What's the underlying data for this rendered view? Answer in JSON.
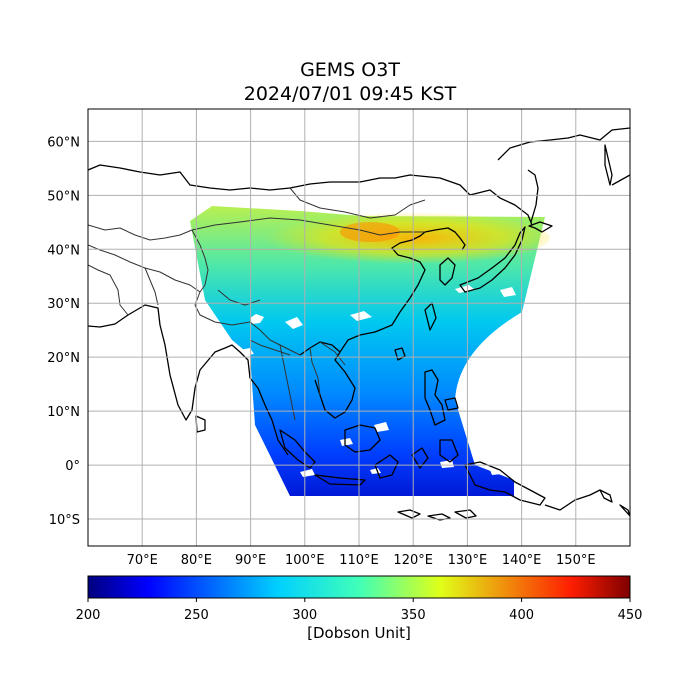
{
  "title_line1": "GEMS O3T",
  "title_line2": "2024/07/01 09:45 KST",
  "map": {
    "lon_range": [
      60,
      160
    ],
    "lat_range": [
      -15,
      66
    ],
    "lon_ticks": [
      {
        "value": 70,
        "label": "70°E"
      },
      {
        "value": 80,
        "label": "80°E"
      },
      {
        "value": 90,
        "label": "90°E"
      },
      {
        "value": 100,
        "label": "100°E"
      },
      {
        "value": 110,
        "label": "110°E"
      },
      {
        "value": 120,
        "label": "120°E"
      },
      {
        "value": 130,
        "label": "130°E"
      },
      {
        "value": 140,
        "label": "140°E"
      },
      {
        "value": 150,
        "label": "150°E"
      }
    ],
    "lat_ticks": [
      {
        "value": 60,
        "label": "60°N"
      },
      {
        "value": 50,
        "label": "50°N"
      },
      {
        "value": 40,
        "label": "40°N"
      },
      {
        "value": 30,
        "label": "30°N"
      },
      {
        "value": 20,
        "label": "20°N"
      },
      {
        "value": 10,
        "label": "10°N"
      },
      {
        "value": 0,
        "label": "0°"
      },
      {
        "value": -10,
        "label": "10°S"
      }
    ],
    "grid": true,
    "colormap": "jet"
  },
  "colorbar": {
    "min": 200,
    "max": 450,
    "ticks": [
      {
        "value": 200,
        "label": "200"
      },
      {
        "value": 250,
        "label": "250"
      },
      {
        "value": 300,
        "label": "300"
      },
      {
        "value": 350,
        "label": "350"
      },
      {
        "value": 400,
        "label": "400"
      },
      {
        "value": 450,
        "label": "450"
      }
    ],
    "label": "[Dobson Unit]"
  }
}
